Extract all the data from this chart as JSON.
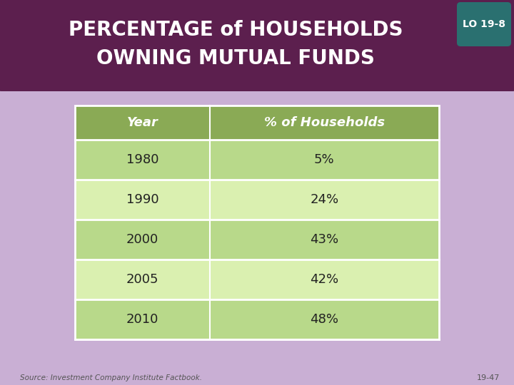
{
  "title_line1": "PERCENTAGE of HOUSEHOLDS",
  "title_line2": "OWNING MUTUAL FUNDS",
  "lo_label": "LO 19-8",
  "background_color": "#c9afd4",
  "header_bg_color": "#5c1f4e",
  "title_text_color": "#ffffff",
  "lo_bg_color": "#2a7070",
  "lo_text_color": "#ffffff",
  "table_header_bg": "#8aaa55",
  "table_row_odd": "#b8d98a",
  "table_row_even": "#daf0b0",
  "table_border_color": "#ffffff",
  "col1_header": "Year",
  "col2_header": "% of Households",
  "rows": [
    [
      "1980",
      "5%"
    ],
    [
      "1990",
      "24%"
    ],
    [
      "2000",
      "43%"
    ],
    [
      "2005",
      "42%"
    ],
    [
      "2010",
      "48%"
    ]
  ],
  "source_text": "Source: Investment Company Institute Factbook.",
  "page_number": "19-47",
  "source_color": "#555555",
  "data_text_color": "#222222",
  "header_text_color": "#ffffff",
  "title_fontsize": 20,
  "header_fontsize": 13,
  "data_fontsize": 13,
  "source_fontsize": 7.5
}
